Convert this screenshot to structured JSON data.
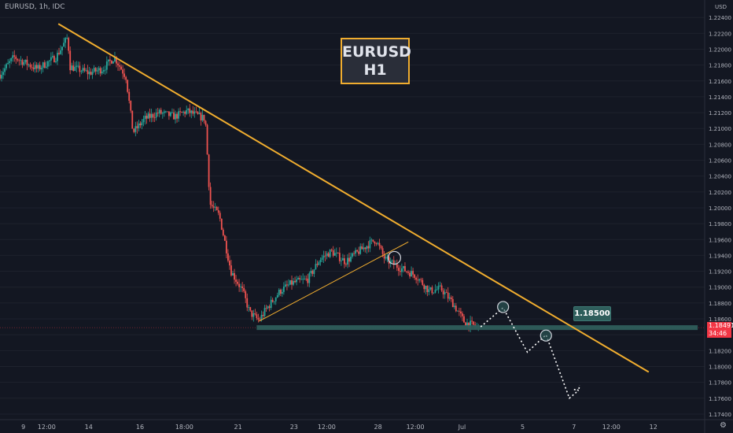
{
  "header": {
    "symbol_text": "EURUSD, 1h, IDC",
    "currency": "USD"
  },
  "annotation_box": {
    "line1": "EURUSD",
    "line2": "H1"
  },
  "level_badge": "1.18500",
  "last_price": {
    "value": "1.18491",
    "countdown": "34:46"
  },
  "colors": {
    "background": "#131722",
    "up_candle": "#26a69a",
    "down_candle": "#ef5350",
    "trendline": "#f0ad2f",
    "support_zone": "#2e5d5b",
    "projection": "#ffffff",
    "axis_text": "#b2b5be",
    "last_price": "#f23645"
  },
  "chart_data": {
    "type": "candlestick",
    "symbol": "EURUSD",
    "timeframe": "1h",
    "y_axis": {
      "ticks": [
        "1.22400",
        "1.22200",
        "1.22000",
        "1.21800",
        "1.21600",
        "1.21400",
        "1.21200",
        "1.21000",
        "1.20800",
        "1.20600",
        "1.20400",
        "1.20200",
        "1.20000",
        "1.19800",
        "1.19600",
        "1.19400",
        "1.19200",
        "1.19000",
        "1.18800",
        "1.18600",
        "1.18400",
        "1.18200",
        "1.18000",
        "1.17800",
        "1.17600",
        "1.17400"
      ],
      "range": [
        1.1733,
        1.2262
      ]
    },
    "x_axis": {
      "ticks": [
        {
          "label": "9",
          "t": 0.5
        },
        {
          "label": "12:00",
          "t": 1.0
        },
        {
          "label": "14",
          "t": 1.9
        },
        {
          "label": "16",
          "t": 3.0
        },
        {
          "label": "18:00",
          "t": 3.95
        },
        {
          "label": "21",
          "t": 5.1
        },
        {
          "label": "23",
          "t": 6.3
        },
        {
          "label": "12:00",
          "t": 7.0
        },
        {
          "label": "28",
          "t": 8.1
        },
        {
          "label": "12:00",
          "t": 8.9
        },
        {
          "label": "Jul",
          "t": 9.9
        },
        {
          "label": "5",
          "t": 11.2
        },
        {
          "label": "7",
          "t": 12.3
        },
        {
          "label": "12:00",
          "t": 13.1
        },
        {
          "label": "12",
          "t": 14.0
        }
      ],
      "range": [
        0,
        15.1
      ]
    },
    "price_path": [
      [
        0.0,
        1.2168
      ],
      [
        0.3,
        1.219
      ],
      [
        0.8,
        1.2175
      ],
      [
        1.2,
        1.219
      ],
      [
        1.45,
        1.2215
      ],
      [
        1.5,
        1.2178
      ],
      [
        1.9,
        1.217
      ],
      [
        2.2,
        1.2175
      ],
      [
        2.45,
        1.219
      ],
      [
        2.7,
        1.2165
      ],
      [
        2.85,
        1.2095
      ],
      [
        3.1,
        1.2112
      ],
      [
        3.4,
        1.212
      ],
      [
        3.75,
        1.2115
      ],
      [
        4.0,
        1.2122
      ],
      [
        4.4,
        1.2112
      ],
      [
        4.5,
        1.2005
      ],
      [
        4.7,
        1.199
      ],
      [
        4.95,
        1.192
      ],
      [
        5.2,
        1.1895
      ],
      [
        5.35,
        1.1868
      ],
      [
        5.55,
        1.1858
      ],
      [
        5.7,
        1.1872
      ],
      [
        6.0,
        1.1895
      ],
      [
        6.25,
        1.1905
      ],
      [
        6.6,
        1.191
      ],
      [
        6.85,
        1.1935
      ],
      [
        7.1,
        1.1945
      ],
      [
        7.4,
        1.1932
      ],
      [
        7.8,
        1.195
      ],
      [
        8.05,
        1.196
      ],
      [
        8.25,
        1.1935
      ],
      [
        8.55,
        1.1925
      ],
      [
        8.9,
        1.1915
      ],
      [
        9.2,
        1.1895
      ],
      [
        9.45,
        1.1898
      ],
      [
        9.7,
        1.188
      ],
      [
        9.95,
        1.1856
      ],
      [
        10.25,
        1.1849
      ]
    ],
    "annotations": {
      "trendline": [
        [
          1.25,
          1.2232
        ],
        [
          13.9,
          1.1793
        ]
      ],
      "rising_support": [
        [
          5.55,
          1.1857
        ],
        [
          8.75,
          1.1957
        ]
      ],
      "support_zone": {
        "from": 5.5,
        "to": 14.95,
        "top": 1.1852,
        "bottom": 1.1846
      },
      "projection_path": [
        [
          10.3,
          1.185
        ],
        [
          10.78,
          1.1874
        ],
        [
          11.3,
          1.1818
        ],
        [
          11.7,
          1.184
        ],
        [
          12.2,
          1.176
        ],
        [
          12.4,
          1.177
        ]
      ],
      "circles": [
        [
          10.78,
          1.1875
        ],
        [
          11.7,
          1.1839
        ],
        [
          8.45,
          1.1937
        ]
      ],
      "last_price_line": 1.1849
    }
  }
}
